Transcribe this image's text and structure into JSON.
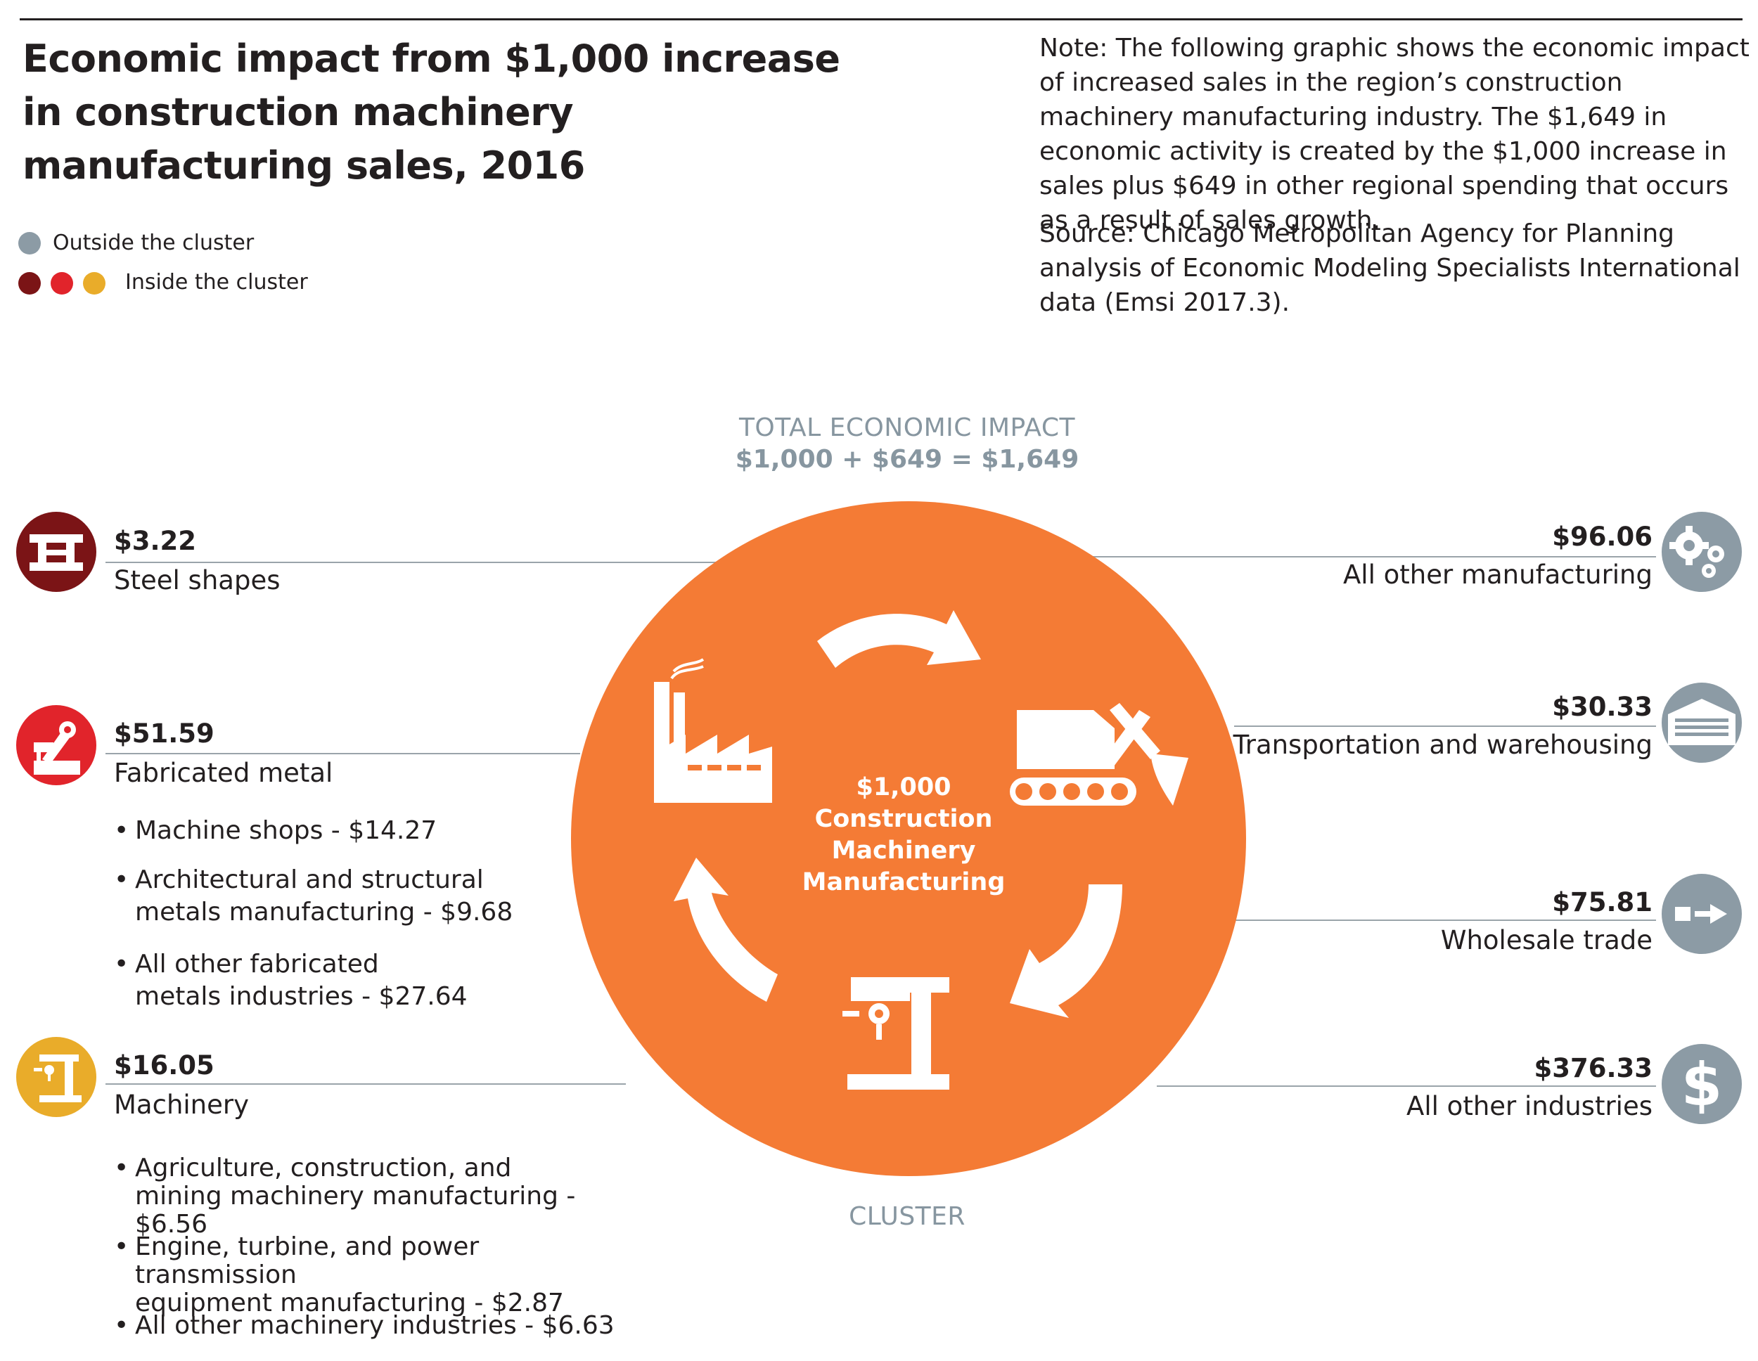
{
  "title": "Economic impact from $1,000 increase in construction machinery manufacturing sales, 2016",
  "note": "Note: The following graphic shows the economic impact of increased sales in the region’s construction machinery manufacturing industry. The $1,649 in economic activity is created by the $1,000 increase in sales plus $649 in other regional spending that occurs as a result of sales growth.",
  "source": "Source: Chicago Metropolitan Agency for Planning analysis of Economic Modeling Specialists International data (Emsi 2017.3).",
  "legend": {
    "outside": {
      "label": "Outside the cluster",
      "color": "#8c9ba5"
    },
    "inside": {
      "label": "Inside the cluster",
      "colors": [
        "#7b1416",
        "#e1242b",
        "#e9ac2a"
      ]
    }
  },
  "center": {
    "top_label": "TOTAL ECONOMIC IMPACT",
    "equation": "$1,000 + $649 = $1,649",
    "bottom_label": "CLUSTER",
    "circle_color": "#f47b35",
    "lines": [
      "$1,000",
      "Construction",
      "Machinery",
      "Manufacturing"
    ],
    "icons": [
      "factory-icon",
      "excavator-icon",
      "drill-press-icon",
      "cycle-arrows-icon"
    ]
  },
  "left_items": [
    {
      "value": "$3.22",
      "label": "Steel shapes",
      "icon": "steel-beam-icon",
      "color": "#7b1416",
      "bullets": []
    },
    {
      "value": "$51.59",
      "label": "Fabricated metal",
      "icon": "robotic-arm-icon",
      "color": "#e1242b",
      "bullets": [
        {
          "lines": [
            "Machine shops - $14.27"
          ]
        },
        {
          "lines": [
            "Architectural and structural",
            "metals manufacturing - $9.68"
          ]
        },
        {
          "lines": [
            "All other fabricated",
            "metals industries - $27.64"
          ]
        }
      ]
    },
    {
      "value": "$16.05",
      "label": "Machinery",
      "icon": "drill-press-icon",
      "color": "#e9ac2a",
      "bullets": [
        {
          "lines": [
            "Agriculture, construction, and",
            "mining machinery manufacturing - $6.56"
          ]
        },
        {
          "lines": [
            "Engine, turbine, and power transmission",
            "equipment manufacturing - $2.87"
          ]
        },
        {
          "lines": [
            "All other machinery industries - $6.63"
          ]
        }
      ]
    }
  ],
  "right_items": [
    {
      "value": "$96.06",
      "label": "All other manufacturing",
      "icon": "gears-icon",
      "color": "#8c9ba5"
    },
    {
      "value": "$30.33",
      "label": "Transportation and warehousing",
      "icon": "warehouse-icon",
      "color": "#8c9ba5"
    },
    {
      "value": "$75.81",
      "label": "Wholesale trade",
      "icon": "forklift-arrow-icon",
      "color": "#8c9ba5"
    },
    {
      "value": "$376.33",
      "label": "All other industries",
      "icon": "dollar-icon",
      "color": "#8c9ba5"
    }
  ]
}
